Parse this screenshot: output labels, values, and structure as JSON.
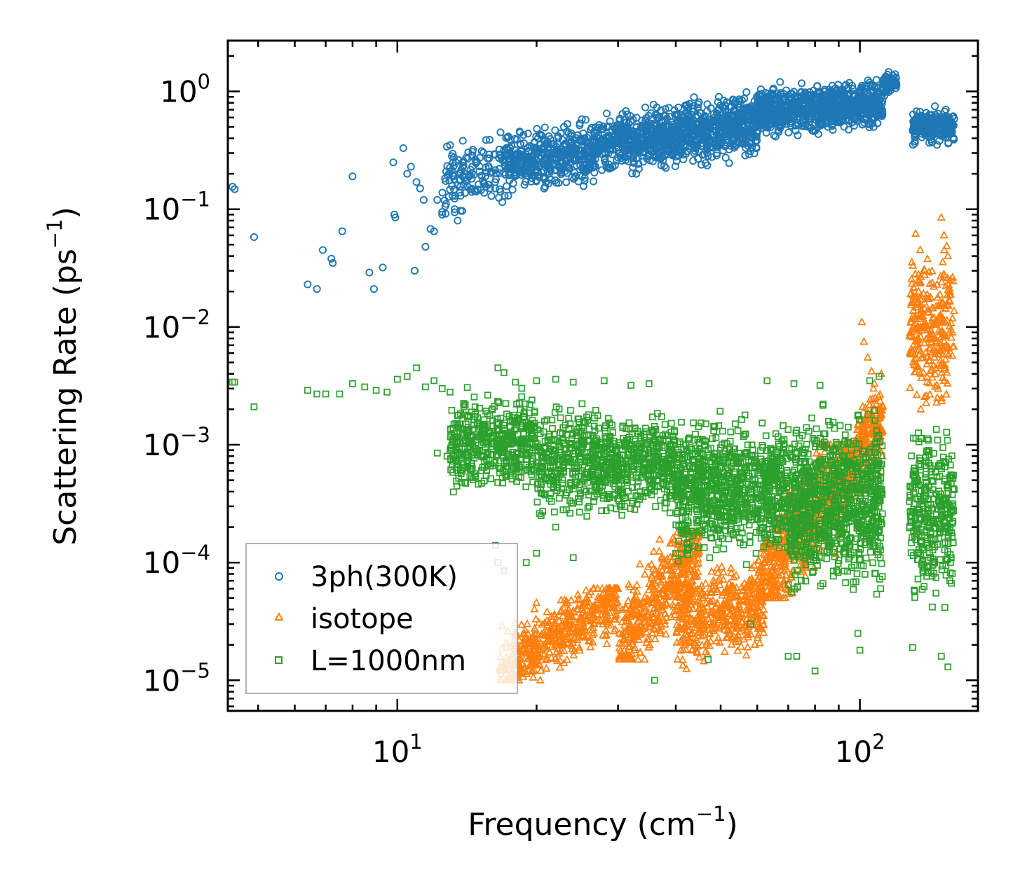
{
  "chart_data": {
    "type": "scatter",
    "title": "",
    "xlabel": "Frequency (cm",
    "xlabel_sup": "−1",
    "xlabel_end": ")",
    "ylabel": "Scattering Rate (ps",
    "ylabel_sup": "−1",
    "ylabel_end": ")",
    "xscale": "log",
    "yscale": "log",
    "xlim": [
      4.3,
      180
    ],
    "ylim": [
      5.5e-06,
      2.7
    ],
    "x_ticks": [
      {
        "value": 10,
        "base": "10",
        "exp": "1"
      },
      {
        "value": 100,
        "base": "10",
        "exp": "2"
      }
    ],
    "y_ticks": [
      {
        "value": 1,
        "base": "10",
        "exp": "0"
      },
      {
        "value": 0.1,
        "base": "10",
        "exp": "−1"
      },
      {
        "value": 0.01,
        "base": "10",
        "exp": "−2"
      },
      {
        "value": 0.001,
        "base": "10",
        "exp": "−3"
      },
      {
        "value": 0.0001,
        "base": "10",
        "exp": "−4"
      },
      {
        "value": 1e-05,
        "base": "10",
        "exp": "−5"
      }
    ],
    "legend_position": "lower-left",
    "series": [
      {
        "name": "3ph(300K)",
        "marker": "circle",
        "color": "#1f77b4",
        "sparse_points": [
          [
            4.4,
            0.155
          ],
          [
            4.45,
            0.148
          ],
          [
            4.9,
            0.058
          ],
          [
            6.4,
            0.023
          ],
          [
            6.7,
            0.021
          ],
          [
            6.9,
            0.045
          ],
          [
            7.2,
            0.038
          ],
          [
            7.25,
            0.035
          ],
          [
            7.6,
            0.065
          ],
          [
            8.0,
            0.19
          ],
          [
            8.7,
            0.029
          ],
          [
            8.9,
            0.021
          ],
          [
            9.3,
            0.032
          ],
          [
            9.8,
            0.25
          ],
          [
            9.85,
            0.09
          ],
          [
            9.9,
            0.085
          ],
          [
            10.3,
            0.33
          ],
          [
            10.5,
            0.2
          ],
          [
            10.7,
            0.23
          ],
          [
            10.9,
            0.03
          ],
          [
            11.0,
            0.17
          ],
          [
            11.2,
            0.15
          ],
          [
            11.4,
            0.12
          ],
          [
            11.5,
            0.048
          ],
          [
            11.8,
            0.068
          ],
          [
            12.0,
            0.065
          ],
          [
            12.2,
            0.12
          ],
          [
            12.5,
            0.09
          ],
          [
            12.8,
            0.34
          ],
          [
            13.0,
            0.35
          ],
          [
            13.3,
            0.1
          ],
          [
            13.5,
            0.08
          ],
          [
            13.7,
            0.13
          ]
        ],
        "clusters": [
          {
            "x": [
              12.5,
              17
            ],
            "y_min": 0.08,
            "y_max": 0.45,
            "n": 130,
            "trend": 0.35
          },
          {
            "x": [
              17,
              30
            ],
            "y_min": 0.13,
            "y_max": 0.65,
            "n": 520,
            "trend": 0.45
          },
          {
            "x": [
              30,
              60
            ],
            "y_min": 0.2,
            "y_max": 1.0,
            "n": 850,
            "trend": 0.45
          },
          {
            "x": [
              60,
              112
            ],
            "y_min": 0.4,
            "y_max": 1.3,
            "n": 850,
            "trend": 0.25
          },
          {
            "x": [
              112,
              120
            ],
            "y_min": 0.9,
            "y_max": 1.5,
            "n": 80,
            "trend": 0.3
          },
          {
            "x": [
              130,
              160
            ],
            "y_min": 0.32,
            "y_max": 0.8,
            "n": 240,
            "trend": 0.0
          }
        ]
      },
      {
        "name": "isotope",
        "marker": "triangle",
        "color": "#ff7f0e",
        "sparse_points": [
          [
            101,
            0.011
          ],
          [
            102,
            0.0075
          ],
          [
            104,
            0.0055
          ],
          [
            106,
            0.0042
          ],
          [
            107,
            0.003
          ],
          [
            108,
            0.0025
          ],
          [
            132,
            0.062
          ],
          [
            135,
            0.045
          ],
          [
            138,
            0.03
          ],
          [
            150,
            0.085
          ],
          [
            152,
            0.06
          ],
          [
            155,
            0.04
          ],
          [
            157,
            0.025
          ],
          [
            134,
            0.02
          ],
          [
            148,
            0.015
          ],
          [
            140,
            0.008
          ],
          [
            145,
            0.0055
          ],
          [
            153,
            0.0045
          ],
          [
            147,
            0.0025
          ],
          [
            152,
            0.0035
          ],
          [
            134,
            0.00018
          ]
        ],
        "clusters": [
          {
            "x": [
              16.5,
              30
            ],
            "y_min": 1e-05,
            "y_max": 6e-05,
            "n": 500,
            "trend": 1.4
          },
          {
            "x": [
              30,
              45
            ],
            "y_min": 1.5e-05,
            "y_max": 0.00018,
            "n": 450,
            "trend": 1.5
          },
          {
            "x": [
              40,
              62
            ],
            "y_min": 1.2e-05,
            "y_max": 0.00012,
            "n": 450,
            "trend": 0.3
          },
          {
            "x": [
              60,
              98
            ],
            "y_min": 5e-05,
            "y_max": 0.001,
            "n": 650,
            "trend": 1.8
          },
          {
            "x": [
              98,
              112
            ],
            "y_min": 0.0003,
            "y_max": 0.004,
            "n": 180,
            "trend": 0.5
          },
          {
            "x": [
              128,
              160
            ],
            "y_min": 0.0016,
            "y_max": 0.06,
            "n": 280,
            "trend": 0.0
          }
        ]
      },
      {
        "name": "L=1000nm",
        "marker": "square",
        "color": "#2ca02c",
        "sparse_points": [
          [
            4.4,
            0.0034
          ],
          [
            4.45,
            0.0034
          ],
          [
            4.9,
            0.0021
          ],
          [
            6.4,
            0.0029
          ],
          [
            6.7,
            0.0027
          ],
          [
            7.0,
            0.0027
          ],
          [
            7.5,
            0.0027
          ],
          [
            8.0,
            0.0033
          ],
          [
            8.5,
            0.0031
          ],
          [
            9.0,
            0.0029
          ],
          [
            9.5,
            0.0028
          ],
          [
            10.0,
            0.0036
          ],
          [
            10.5,
            0.0038
          ],
          [
            11.0,
            0.0045
          ],
          [
            11.5,
            0.0031
          ],
          [
            12.0,
            0.0035
          ],
          [
            12.5,
            0.003
          ],
          [
            13.0,
            0.0028
          ],
          [
            12.2,
            0.00085
          ],
          [
            12.8,
            0.0008
          ],
          [
            16.3,
            0.00014
          ],
          [
            16.5,
            0.0001
          ],
          [
            17.0,
            8.5e-05
          ],
          [
            19.0,
            0.0001
          ],
          [
            20.0,
            0.00012
          ],
          [
            22.0,
            0.0002
          ],
          [
            24,
            0.00011
          ],
          [
            26,
            0.0003
          ],
          [
            28,
            0.0035
          ],
          [
            36,
            1e-05
          ],
          [
            40,
            0.00012
          ],
          [
            47,
            1.5e-05
          ],
          [
            58,
            3e-05
          ],
          [
            70,
            1.6e-05
          ],
          [
            73,
            1.6e-05
          ],
          [
            80,
            1.2e-05
          ],
          [
            99,
            2.5e-05
          ],
          [
            100,
            1.8e-05
          ],
          [
            110,
            0.0038
          ],
          [
            130,
            1.9e-05
          ],
          [
            150,
            1.6e-05
          ],
          [
            155,
            1.3e-05
          ],
          [
            35,
            0.0033
          ],
          [
            32,
            0.0032
          ],
          [
            24,
            0.0034
          ],
          [
            22,
            0.0036
          ],
          [
            20,
            0.0035
          ],
          [
            18,
            0.0034
          ],
          [
            16.5,
            0.0045
          ],
          [
            17,
            0.0041
          ],
          [
            63,
            0.0035
          ],
          [
            72,
            0.0033
          ],
          [
            82,
            0.0032
          ],
          [
            105,
            0.0035
          ]
        ],
        "clusters": [
          {
            "x": [
              13,
              20
            ],
            "y_min": 0.0003,
            "y_max": 0.0035,
            "n": 450,
            "trend": 0.0
          },
          {
            "x": [
              20,
              40
            ],
            "y_min": 0.0002,
            "y_max": 0.0025,
            "n": 800,
            "trend": 0.0
          },
          {
            "x": [
              40,
              70
            ],
            "y_min": 8e-05,
            "y_max": 0.0022,
            "n": 900,
            "trend": 0.0
          },
          {
            "x": [
              70,
              112
            ],
            "y_min": 4e-05,
            "y_max": 0.0025,
            "n": 900,
            "trend": 0.0
          },
          {
            "x": [
              128,
              160
            ],
            "y_min": 3e-05,
            "y_max": 0.002,
            "n": 320,
            "trend": 0.0
          }
        ]
      }
    ]
  }
}
